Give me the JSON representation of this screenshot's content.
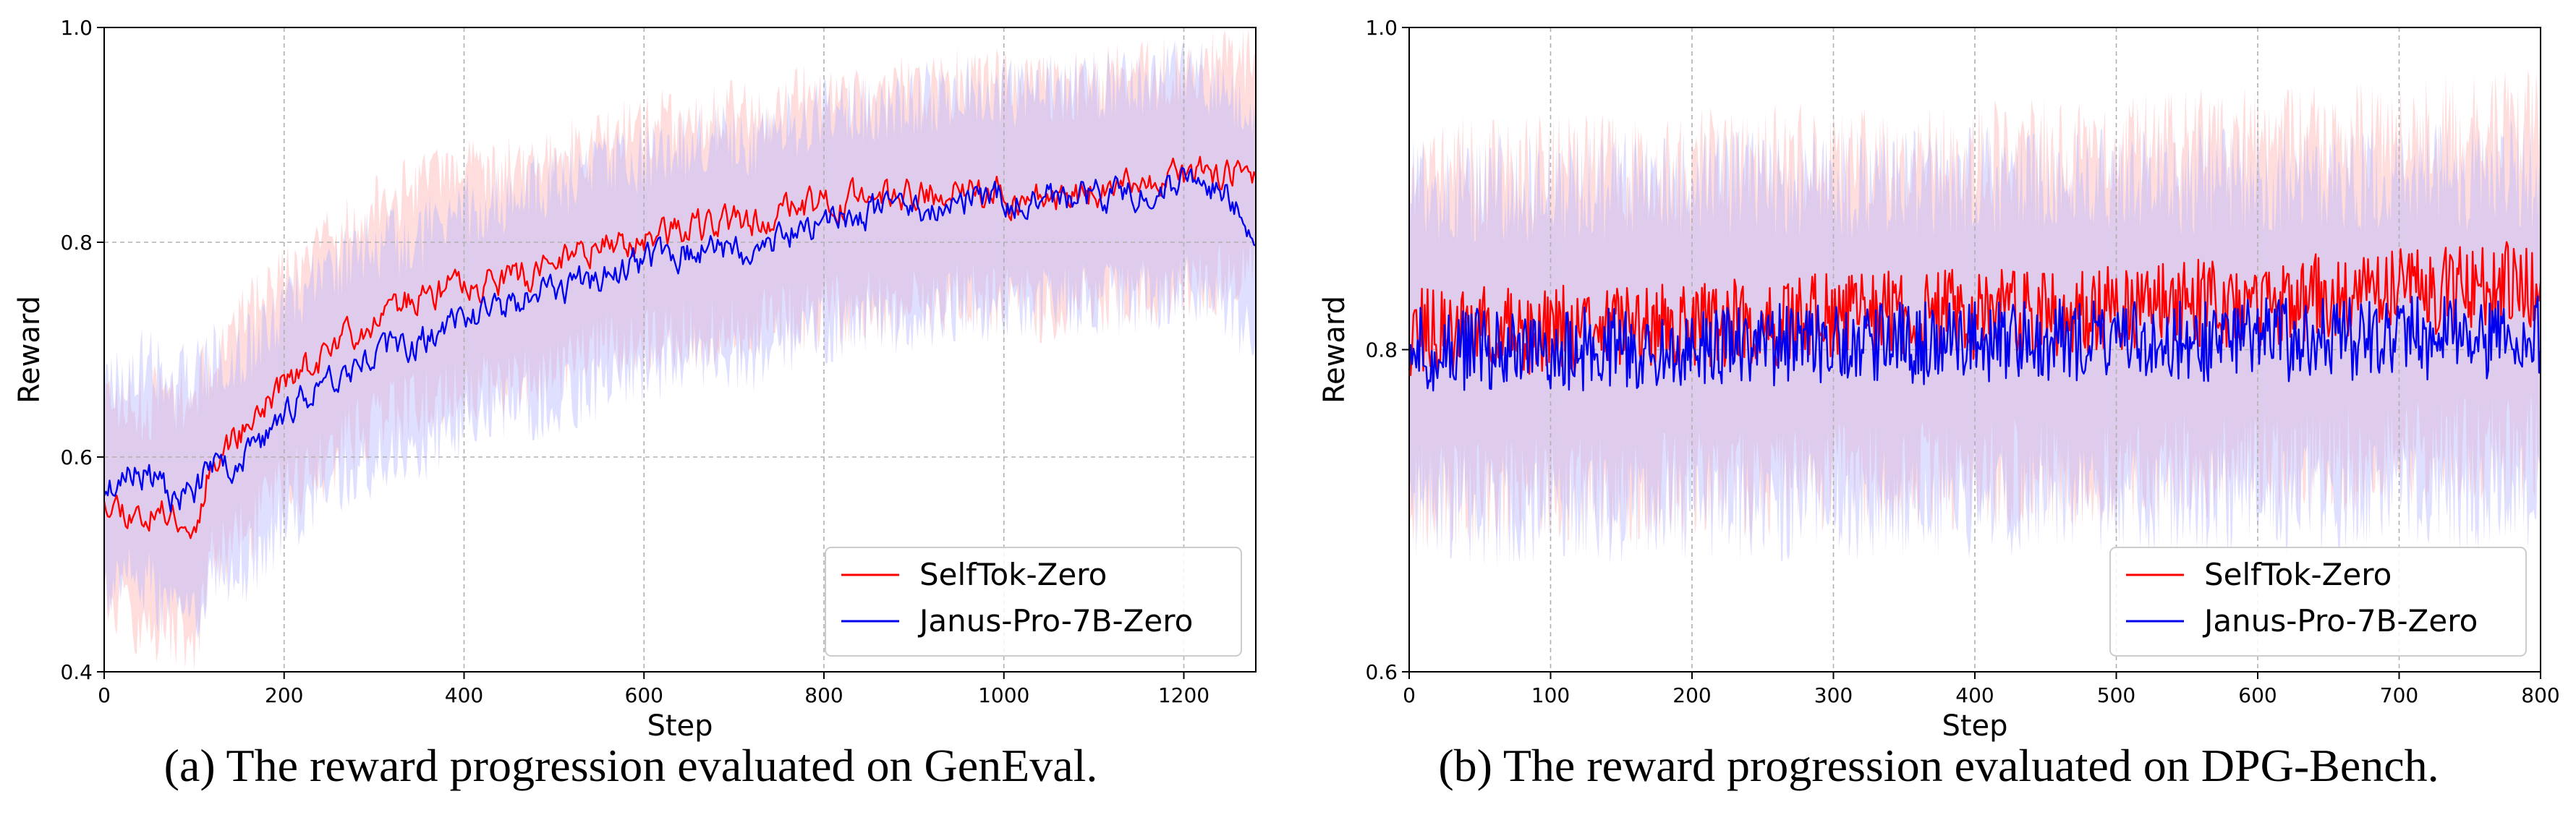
{
  "chart_data": [
    {
      "type": "line",
      "panel": "a",
      "caption": "(a) The reward progression evaluated on GenEval.",
      "xlabel": "Step",
      "ylabel": "Reward",
      "xlim": [
        0,
        1280
      ],
      "ylim": [
        0.4,
        1.0
      ],
      "xticks": [
        0,
        200,
        400,
        600,
        800,
        1000,
        1200
      ],
      "yticks": [
        0.4,
        0.6,
        0.8,
        1.0
      ],
      "xtick_labels": [
        "0",
        "200",
        "400",
        "600",
        "800",
        "1000",
        "1200"
      ],
      "ytick_labels": [
        "0.4",
        "0.6",
        "0.8",
        "1.0"
      ],
      "grid": true,
      "legend_position": "bottom-right",
      "series": [
        {
          "name": "SelfTok-Zero",
          "color": "#ff0000",
          "band_color": "#ffb3b3",
          "x": [
            0,
            40,
            80,
            100,
            120,
            160,
            200,
            240,
            280,
            320,
            360,
            400,
            440,
            480,
            520,
            560,
            600,
            640,
            680,
            720,
            760,
            800,
            840,
            880,
            920,
            960,
            1000,
            1040,
            1080,
            1120,
            1160,
            1200,
            1240,
            1280
          ],
          "mean": [
            0.565,
            0.545,
            0.55,
            0.53,
            0.6,
            0.63,
            0.67,
            0.69,
            0.72,
            0.74,
            0.75,
            0.76,
            0.765,
            0.77,
            0.79,
            0.8,
            0.805,
            0.81,
            0.815,
            0.82,
            0.83,
            0.835,
            0.84,
            0.84,
            0.845,
            0.85,
            0.845,
            0.84,
            0.845,
            0.85,
            0.855,
            0.86,
            0.865,
            0.87
          ],
          "band": [
            0.09,
            0.1,
            0.11,
            0.11,
            0.1,
            0.1,
            0.1,
            0.1,
            0.1,
            0.1,
            0.1,
            0.1,
            0.1,
            0.1,
            0.1,
            0.1,
            0.1,
            0.1,
            0.1,
            0.1,
            0.1,
            0.1,
            0.1,
            0.1,
            0.1,
            0.1,
            0.1,
            0.1,
            0.1,
            0.1,
            0.1,
            0.1,
            0.1,
            0.1
          ],
          "noise": 0.012,
          "seed": 11
        },
        {
          "name": "Janus-Pro-7B-Zero",
          "color": "#0000ee",
          "band_color": "#b8b8ff",
          "x": [
            0,
            40,
            80,
            100,
            120,
            160,
            200,
            240,
            280,
            320,
            360,
            400,
            440,
            480,
            520,
            560,
            600,
            640,
            680,
            720,
            760,
            800,
            840,
            880,
            920,
            960,
            1000,
            1040,
            1080,
            1120,
            1160,
            1200,
            1240,
            1280
          ],
          "mean": [
            0.57,
            0.59,
            0.56,
            0.57,
            0.59,
            0.6,
            0.64,
            0.67,
            0.69,
            0.7,
            0.71,
            0.73,
            0.74,
            0.75,
            0.76,
            0.77,
            0.78,
            0.79,
            0.795,
            0.79,
            0.81,
            0.82,
            0.825,
            0.83,
            0.835,
            0.84,
            0.84,
            0.84,
            0.845,
            0.845,
            0.85,
            0.855,
            0.85,
            0.81
          ],
          "band": [
            0.1,
            0.1,
            0.11,
            0.11,
            0.1,
            0.1,
            0.1,
            0.1,
            0.1,
            0.1,
            0.1,
            0.1,
            0.1,
            0.1,
            0.1,
            0.1,
            0.1,
            0.1,
            0.1,
            0.1,
            0.1,
            0.1,
            0.1,
            0.1,
            0.1,
            0.1,
            0.1,
            0.1,
            0.1,
            0.1,
            0.1,
            0.1,
            0.1,
            0.1
          ],
          "noise": 0.012,
          "seed": 23
        }
      ]
    },
    {
      "type": "line",
      "panel": "b",
      "caption": "(b) The reward progression evaluated on DPG-Bench.",
      "xlabel": "Step",
      "ylabel": "Reward",
      "xlim": [
        0,
        800
      ],
      "ylim": [
        0.6,
        1.0
      ],
      "xticks": [
        0,
        100,
        200,
        300,
        400,
        500,
        600,
        700,
        800
      ],
      "yticks": [
        0.6,
        0.8,
        1.0
      ],
      "xtick_labels": [
        "0",
        "100",
        "200",
        "300",
        "400",
        "500",
        "600",
        "700",
        "800"
      ],
      "ytick_labels": [
        "0.6",
        "0.8",
        "1.0"
      ],
      "grid": true,
      "legend_position": "bottom-right",
      "series": [
        {
          "name": "SelfTok-Zero",
          "color": "#ff0000",
          "band_color": "#ffb3b3",
          "x": [
            0,
            100,
            200,
            300,
            400,
            500,
            600,
            700,
            800
          ],
          "mean": [
            0.81,
            0.812,
            0.815,
            0.82,
            0.822,
            0.825,
            0.83,
            0.835,
            0.84
          ],
          "band": [
            0.1,
            0.1,
            0.1,
            0.1,
            0.1,
            0.1,
            0.1,
            0.1,
            0.1
          ],
          "noise": 0.028,
          "seed": 37
        },
        {
          "name": "Janus-Pro-7B-Zero",
          "color": "#0000ee",
          "band_color": "#b8b8ff",
          "x": [
            0,
            100,
            200,
            300,
            400,
            500,
            600,
            700,
            800
          ],
          "mean": [
            0.8,
            0.8,
            0.802,
            0.803,
            0.805,
            0.806,
            0.806,
            0.807,
            0.808
          ],
          "band": [
            0.1,
            0.1,
            0.1,
            0.1,
            0.1,
            0.1,
            0.1,
            0.1,
            0.1
          ],
          "noise": 0.026,
          "seed": 51
        }
      ]
    }
  ]
}
